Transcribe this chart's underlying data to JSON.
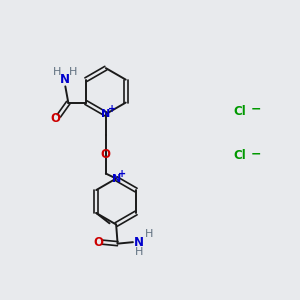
{
  "background_color": "#e8eaed",
  "bond_color": "#1a1a1a",
  "N_color": "#0000cc",
  "O_color": "#cc0000",
  "Cl_color": "#009900",
  "H_color": "#607080",
  "figsize": [
    3.0,
    3.0
  ],
  "dpi": 100,
  "xlim": [
    0,
    10
  ],
  "ylim": [
    0,
    10
  ]
}
